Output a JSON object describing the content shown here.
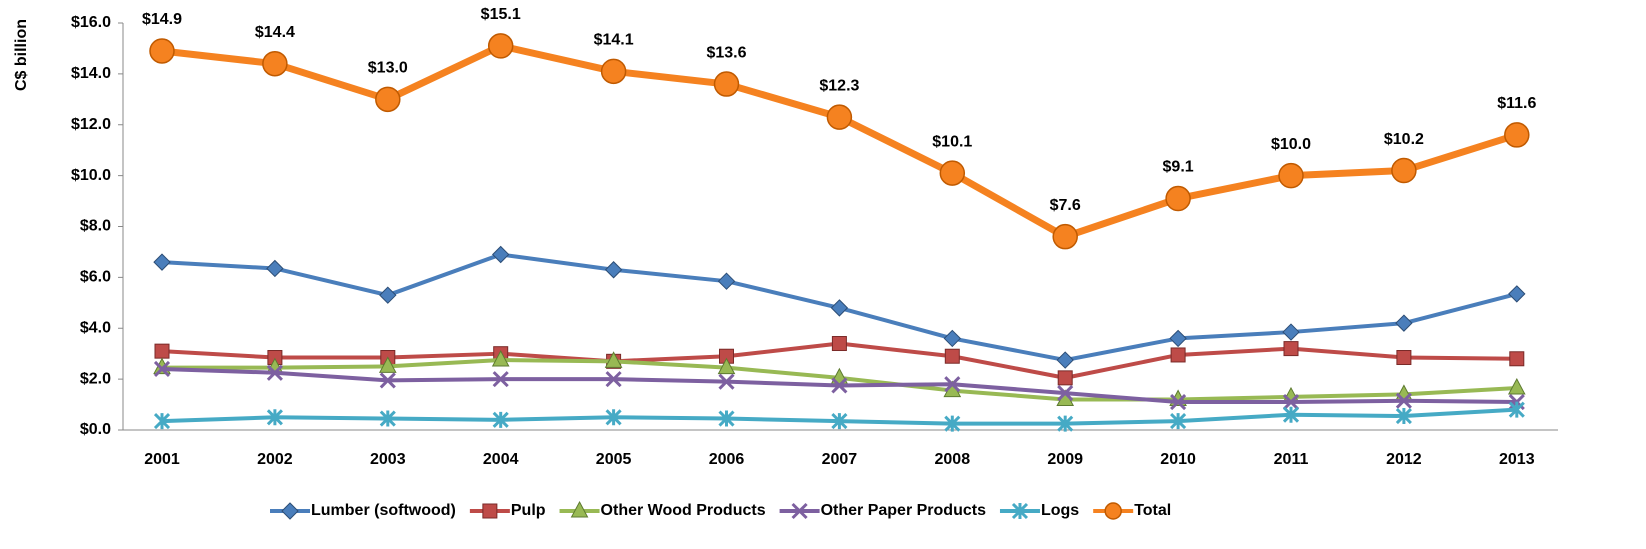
{
  "chart_data": {
    "type": "line",
    "y_label": "C$ billion",
    "categories": [
      "2001",
      "2002",
      "2003",
      "2004",
      "2005",
      "2006",
      "2007",
      "2008",
      "2009",
      "2010",
      "2011",
      "2012",
      "2013"
    ],
    "ylim": [
      0,
      16
    ],
    "yticks": [
      {
        "value": 0,
        "label": "$0.0"
      },
      {
        "value": 2,
        "label": "$2.0"
      },
      {
        "value": 4,
        "label": "$4.0"
      },
      {
        "value": 6,
        "label": "$6.0"
      },
      {
        "value": 8,
        "label": "$8.0"
      },
      {
        "value": 10,
        "label": "$10.0"
      },
      {
        "value": 12,
        "label": "$12.0"
      },
      {
        "value": 14,
        "label": "$14.0"
      },
      {
        "value": 16,
        "label": "$16.0"
      }
    ],
    "legend": "bottom",
    "series": [
      {
        "name": "Lumber (softwood)",
        "color": "#4a7ebb",
        "marker": "diamond",
        "values": [
          6.6,
          6.35,
          5.3,
          6.9,
          6.3,
          5.85,
          4.8,
          3.6,
          2.75,
          3.6,
          3.85,
          4.2,
          5.35
        ]
      },
      {
        "name": "Pulp",
        "color": "#be4b48",
        "marker": "square",
        "values": [
          3.1,
          2.85,
          2.85,
          3.0,
          2.7,
          2.9,
          3.4,
          2.9,
          2.05,
          2.95,
          3.2,
          2.85,
          2.8
        ]
      },
      {
        "name": "Other Wood Products",
        "color": "#98b954",
        "marker": "triangle",
        "values": [
          2.45,
          2.45,
          2.5,
          2.75,
          2.7,
          2.45,
          2.05,
          1.55,
          1.2,
          1.2,
          1.3,
          1.4,
          1.65
        ]
      },
      {
        "name": "Other Paper Products",
        "color": "#7d60a0",
        "marker": "x",
        "values": [
          2.4,
          2.25,
          1.95,
          2.0,
          2.0,
          1.9,
          1.75,
          1.8,
          1.45,
          1.1,
          1.1,
          1.15,
          1.1
        ]
      },
      {
        "name": "Logs",
        "color": "#46aac5",
        "marker": "star",
        "values": [
          0.35,
          0.5,
          0.45,
          0.4,
          0.5,
          0.45,
          0.35,
          0.25,
          0.25,
          0.35,
          0.6,
          0.55,
          0.8
        ]
      },
      {
        "name": "Total",
        "color": "#f58220",
        "marker": "circle",
        "values": [
          14.9,
          14.4,
          13.0,
          15.1,
          14.1,
          13.6,
          12.3,
          10.1,
          7.6,
          9.1,
          10.0,
          10.2,
          11.6
        ],
        "value_labels": [
          "$14.9",
          "$14.4",
          "$13.0",
          "$15.1",
          "$14.1",
          "$13.6",
          "$12.3",
          "$10.1",
          "$7.6",
          "$9.1",
          "$10.0",
          "$10.2",
          "$11.6"
        ]
      }
    ]
  }
}
